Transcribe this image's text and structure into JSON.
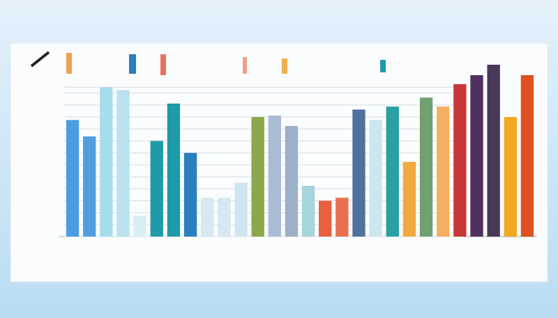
{
  "chart_data": {
    "type": "bar",
    "categories": [
      null,
      null,
      null,
      null,
      null,
      null,
      null,
      null,
      null,
      null,
      null,
      null,
      null,
      null,
      null,
      null,
      null,
      null,
      null,
      null,
      null,
      null,
      null,
      null,
      null,
      null,
      null,
      null
    ],
    "values": [
      78,
      67,
      100,
      98,
      14,
      64,
      89,
      56,
      26,
      26,
      36,
      80,
      81,
      74,
      34,
      24,
      26,
      85,
      78,
      87,
      50,
      93,
      87,
      102,
      108,
      115,
      80,
      108
    ],
    "colors": [
      "#4a9de0",
      "#4f9fe0",
      "#a8dcec",
      "#b8e2ee",
      "#d8eef2",
      "#1f9aa8",
      "#1f9aa8",
      "#2a7fc0",
      "#d6e8f0",
      "#d6e8f0",
      "#cfe6ee",
      "#8aa84a",
      "#a8bcd4",
      "#9cb0c8",
      "#a8d4dc",
      "#e86040",
      "#e87050",
      "#5070a0",
      "#cde6ee",
      "#2aa0a0",
      "#f0a840",
      "#70a070",
      "#f4b060",
      "#c83838",
      "#503060",
      "#483858",
      "#f0a820",
      "#e05020"
    ],
    "ylim": [
      0,
      115
    ],
    "yticks": [
      0,
      8,
      16,
      24,
      32,
      40,
      48,
      56,
      64,
      72,
      80,
      88,
      96,
      100
    ],
    "grid": true
  }
}
